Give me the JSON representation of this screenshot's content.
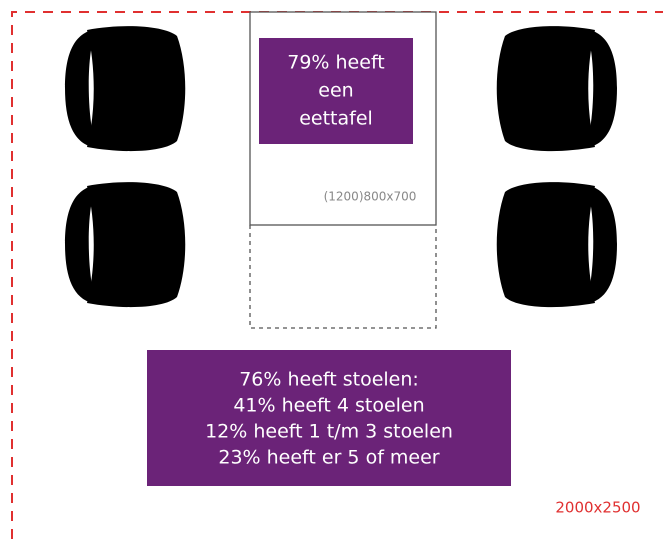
{
  "table_box": {
    "lines": [
      "79% heeft",
      "een",
      "eettafel"
    ]
  },
  "table_label": "(1200)800x700",
  "chairs_box": {
    "lines": [
      "76% heeft stoelen:",
      "41% heeft 4 stoelen",
      "12% heeft 1 t/m 3 stoelen",
      "23% heeft er 5 of meer"
    ]
  },
  "room_label": "2000x2500"
}
